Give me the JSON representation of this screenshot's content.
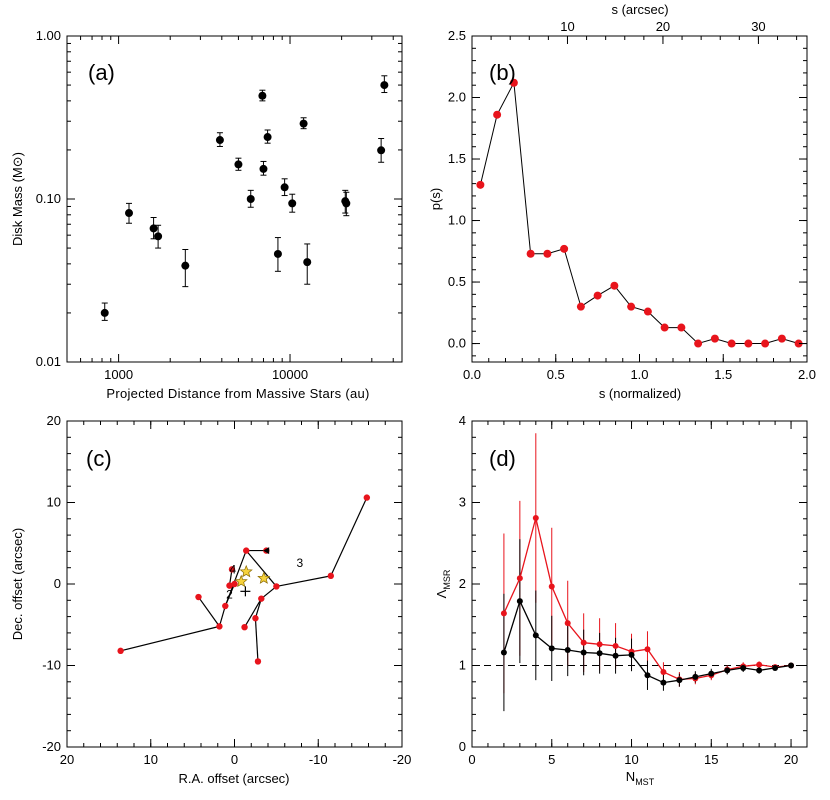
{
  "chart_data": [
    {
      "panel": "a",
      "type": "scatter",
      "panel_label": "(a)",
      "title": "",
      "xlabel": "Projected Distance from Massive Stars (au)",
      "ylabel": "Disk Mass (M⊙)",
      "xscale": "log",
      "yscale": "log",
      "xlim": [
        500,
        45000
      ],
      "ylim": [
        0.01,
        1.0
      ],
      "xticks": [
        {
          "v": 1000,
          "label": "1000"
        },
        {
          "v": 10000,
          "label": "10000"
        }
      ],
      "yticks": [
        {
          "v": 0.01,
          "label": "0.01"
        },
        {
          "v": 0.1,
          "label": "0.10"
        },
        {
          "v": 1.0,
          "label": "1.00"
        }
      ],
      "points": [
        {
          "x": 830,
          "y": 0.02,
          "lo": 0.018,
          "hi": 0.023
        },
        {
          "x": 1150,
          "y": 0.082,
          "lo": 0.071,
          "hi": 0.094
        },
        {
          "x": 1600,
          "y": 0.066,
          "lo": 0.057,
          "hi": 0.077
        },
        {
          "x": 1700,
          "y": 0.059,
          "lo": 0.05,
          "hi": 0.069
        },
        {
          "x": 2450,
          "y": 0.039,
          "lo": 0.029,
          "hi": 0.049
        },
        {
          "x": 3900,
          "y": 0.23,
          "lo": 0.21,
          "hi": 0.255
        },
        {
          "x": 5000,
          "y": 0.163,
          "lo": 0.15,
          "hi": 0.178
        },
        {
          "x": 5900,
          "y": 0.1,
          "lo": 0.089,
          "hi": 0.113
        },
        {
          "x": 6900,
          "y": 0.43,
          "lo": 0.4,
          "hi": 0.465
        },
        {
          "x": 7000,
          "y": 0.153,
          "lo": 0.14,
          "hi": 0.17
        },
        {
          "x": 7400,
          "y": 0.24,
          "lo": 0.22,
          "hi": 0.265
        },
        {
          "x": 8500,
          "y": 0.046,
          "lo": 0.036,
          "hi": 0.058
        },
        {
          "x": 9300,
          "y": 0.118,
          "lo": 0.105,
          "hi": 0.133
        },
        {
          "x": 10300,
          "y": 0.094,
          "lo": 0.083,
          "hi": 0.107
        },
        {
          "x": 12000,
          "y": 0.29,
          "lo": 0.27,
          "hi": 0.315
        },
        {
          "x": 12600,
          "y": 0.041,
          "lo": 0.03,
          "hi": 0.053
        },
        {
          "x": 21000,
          "y": 0.097,
          "lo": 0.082,
          "hi": 0.113
        },
        {
          "x": 21300,
          "y": 0.094,
          "lo": 0.079,
          "hi": 0.11
        },
        {
          "x": 34000,
          "y": 0.199,
          "lo": 0.168,
          "hi": 0.235
        },
        {
          "x": 35500,
          "y": 0.5,
          "lo": 0.45,
          "hi": 0.57
        }
      ]
    },
    {
      "panel": "b",
      "type": "line",
      "panel_label": "(b)",
      "title": "",
      "xlabel": "s (normalized)",
      "ylabel": "p(s)",
      "top_xlabel": "s (arcsec)",
      "xlim": [
        0.0,
        2.0
      ],
      "ylim": [
        -0.15,
        2.5
      ],
      "xticks": [
        {
          "v": 0.0,
          "label": "0.0"
        },
        {
          "v": 0.5,
          "label": "0.5"
        },
        {
          "v": 1.0,
          "label": "1.0"
        },
        {
          "v": 1.5,
          "label": "1.5"
        },
        {
          "v": 2.0,
          "label": "2.0"
        }
      ],
      "yticks": [
        {
          "v": 0.0,
          "label": "0.0"
        },
        {
          "v": 0.5,
          "label": "0.5"
        },
        {
          "v": 1.0,
          "label": "1.0"
        },
        {
          "v": 1.5,
          "label": "1.5"
        },
        {
          "v": 2.0,
          "label": "2.0"
        },
        {
          "v": 2.5,
          "label": "2.5"
        }
      ],
      "top_xticks": [
        {
          "v": 0.57,
          "label": "10"
        },
        {
          "v": 1.14,
          "label": "20"
        },
        {
          "v": 1.71,
          "label": "30"
        }
      ],
      "x": [
        0.05,
        0.15,
        0.25,
        0.35,
        0.45,
        0.55,
        0.65,
        0.75,
        0.85,
        0.95,
        1.05,
        1.15,
        1.25,
        1.35,
        1.45,
        1.55,
        1.65,
        1.75,
        1.85,
        1.95
      ],
      "y": [
        1.29,
        1.86,
        2.12,
        0.73,
        0.73,
        0.77,
        0.3,
        0.39,
        0.47,
        0.3,
        0.26,
        0.13,
        0.13,
        0.0,
        0.04,
        0.0,
        0.0,
        0.0,
        0.04,
        0.0
      ]
    },
    {
      "panel": "c",
      "type": "scatter",
      "panel_label": "(c)",
      "title": "",
      "xlabel": "R.A. offset (arcsec)",
      "ylabel": "Dec. offset (arcsec)",
      "xlim": [
        20,
        -20
      ],
      "ylim": [
        -20,
        20
      ],
      "xticks": [
        {
          "v": 20,
          "label": "20"
        },
        {
          "v": 10,
          "label": "10"
        },
        {
          "v": 0,
          "label": "0"
        },
        {
          "v": -10,
          "label": "-10"
        },
        {
          "v": -20,
          "label": "-20"
        }
      ],
      "yticks": [
        {
          "v": -20,
          "label": "-20"
        },
        {
          "v": -10,
          "label": "-10"
        },
        {
          "v": 0,
          "label": "0"
        },
        {
          "v": 10,
          "label": "10"
        },
        {
          "v": 20,
          "label": "20"
        }
      ],
      "points": [
        {
          "x": -15.8,
          "y": 10.6
        },
        {
          "x": -11.5,
          "y": 1.0
        },
        {
          "x": -5.0,
          "y": -0.3
        },
        {
          "x": -3.2,
          "y": -1.8
        },
        {
          "x": -2.5,
          "y": -4.2
        },
        {
          "x": -2.8,
          "y": -9.5
        },
        {
          "x": -1.2,
          "y": -5.3
        },
        {
          "x": -1.4,
          "y": 4.1
        },
        {
          "x": -3.8,
          "y": 4.1
        },
        {
          "x": 0.3,
          "y": 1.8
        },
        {
          "x": 0.6,
          "y": -0.2
        },
        {
          "x": 0.0,
          "y": 0.0
        },
        {
          "x": 1.1,
          "y": -2.7
        },
        {
          "x": 1.8,
          "y": -5.2
        },
        {
          "x": 4.3,
          "y": -1.6
        },
        {
          "x": 13.6,
          "y": -8.2
        }
      ],
      "edges": [
        [
          0,
          1
        ],
        [
          1,
          2
        ],
        [
          2,
          3
        ],
        [
          3,
          4
        ],
        [
          4,
          5
        ],
        [
          3,
          6
        ],
        [
          2,
          7
        ],
        [
          7,
          8
        ],
        [
          7,
          12
        ],
        [
          9,
          10
        ],
        [
          10,
          11
        ],
        [
          11,
          12
        ],
        [
          12,
          13
        ],
        [
          13,
          14
        ],
        [
          13,
          15
        ]
      ],
      "stars": [
        {
          "x": -1.4,
          "y": 1.5
        },
        {
          "x": -3.5,
          "y": 0.7
        },
        {
          "x": -0.8,
          "y": 0.3
        }
      ],
      "center_cross": {
        "x": -1.3,
        "y": -0.9
      },
      "triangle": {
        "x": -3.9,
        "y": 4.1
      },
      "annotations": [
        {
          "text": "3",
          "x": -7.8,
          "y": 2.1
        },
        {
          "text": "4",
          "x": 0.2,
          "y": 1.3
        },
        {
          "text": "2",
          "x": 0.6,
          "y": -1.8
        }
      ]
    },
    {
      "panel": "d",
      "type": "line",
      "panel_label": "(d)",
      "title": "",
      "xlabel": "N_MST",
      "ylabel": "Λ_MSR",
      "xlim": [
        0,
        21
      ],
      "ylim": [
        0,
        4
      ],
      "xticks": [
        {
          "v": 0,
          "label": "0"
        },
        {
          "v": 5,
          "label": "5"
        },
        {
          "v": 10,
          "label": "10"
        },
        {
          "v": 15,
          "label": "15"
        },
        {
          "v": 20,
          "label": "20"
        }
      ],
      "yticks": [
        {
          "v": 0,
          "label": "0"
        },
        {
          "v": 1,
          "label": "1"
        },
        {
          "v": 2,
          "label": "2"
        },
        {
          "v": 3,
          "label": "3"
        },
        {
          "v": 4,
          "label": "4"
        }
      ],
      "reference_line": 1.0,
      "series": [
        {
          "name": "red",
          "color": "#e8141c",
          "x": [
            2,
            3,
            4,
            5,
            6,
            7,
            8,
            9,
            10,
            11,
            12,
            13,
            14,
            15,
            16,
            17,
            18,
            19,
            20
          ],
          "y": [
            1.64,
            2.07,
            2.81,
            1.97,
            1.52,
            1.28,
            1.26,
            1.24,
            1.17,
            1.2,
            0.92,
            0.83,
            0.84,
            0.88,
            0.95,
            0.99,
            1.01,
            0.98,
            1.0
          ],
          "err": [
            0.98,
            0.95,
            1.04,
            0.72,
            0.52,
            0.36,
            0.32,
            0.28,
            0.22,
            0.22,
            0.12,
            0.09,
            0.07,
            0.06,
            0.05,
            0.05,
            0.04,
            0.03,
            0.02
          ]
        },
        {
          "name": "black",
          "color": "#000000",
          "x": [
            2,
            3,
            4,
            5,
            6,
            7,
            8,
            9,
            10,
            11,
            12,
            13,
            14,
            15,
            16,
            17,
            18,
            19,
            20
          ],
          "y": [
            1.16,
            1.79,
            1.37,
            1.21,
            1.19,
            1.16,
            1.15,
            1.12,
            1.13,
            0.88,
            0.79,
            0.82,
            0.86,
            0.9,
            0.94,
            0.97,
            0.94,
            0.97,
            1.0
          ],
          "err": [
            0.72,
            0.76,
            0.55,
            0.4,
            0.32,
            0.28,
            0.25,
            0.22,
            0.2,
            0.18,
            0.1,
            0.08,
            0.07,
            0.06,
            0.05,
            0.05,
            0.04,
            0.03,
            0.02
          ]
        }
      ]
    }
  ]
}
